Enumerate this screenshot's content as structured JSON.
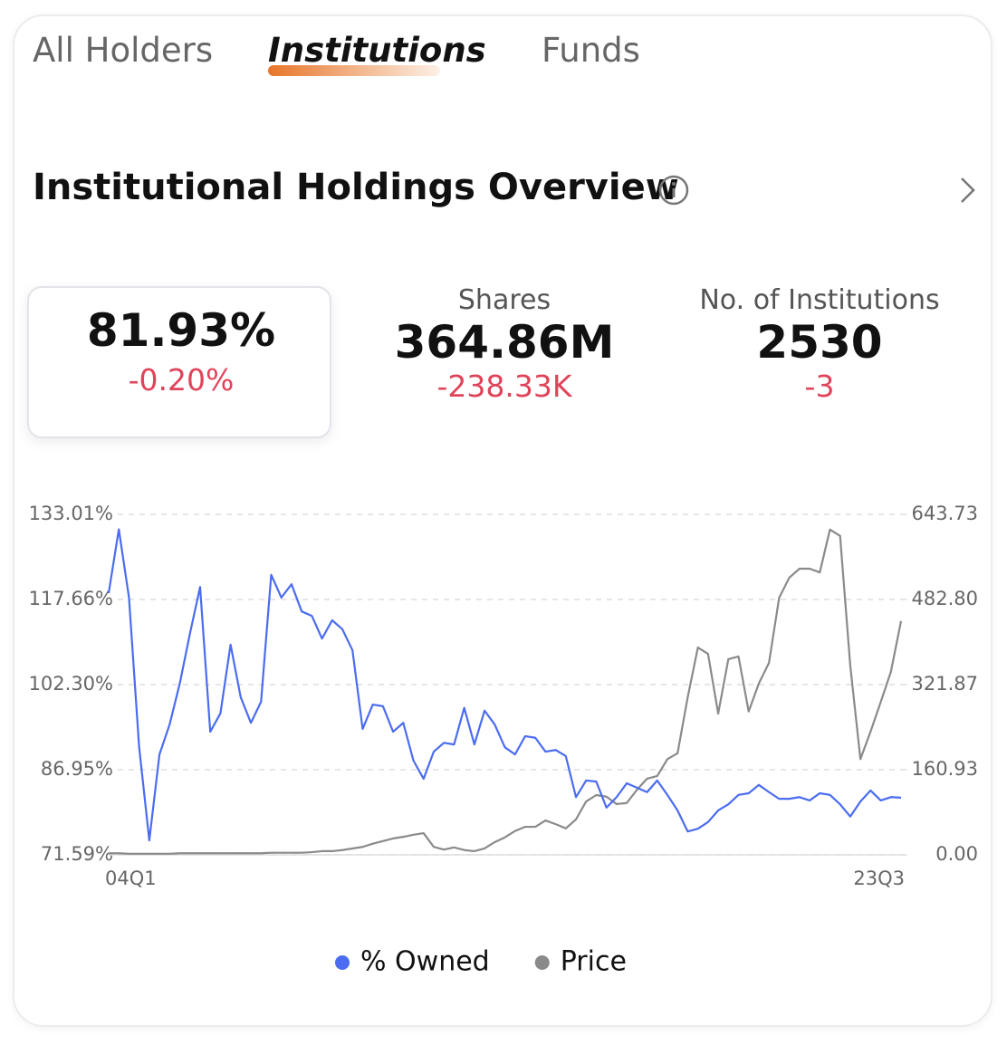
{
  "tabs": [
    "All Holders",
    "Institutions",
    "Funds"
  ],
  "header": {
    "title": "Institutional Holdings Overview"
  },
  "stats": [
    {
      "value": "81.93%",
      "change": "-0.20%"
    },
    {
      "label": "Shares",
      "value": "364.86M",
      "change": "-238.33K"
    },
    {
      "label": "No. of Institutions",
      "value": "2530",
      "change": "-3"
    }
  ],
  "chart_data": {
    "type": "line",
    "categories": [
      "04Q1",
      null,
      null,
      null,
      null,
      null,
      null,
      null,
      null,
      null,
      null,
      null,
      null,
      null,
      null,
      null,
      null,
      null,
      null,
      null,
      null,
      null,
      null,
      null,
      null,
      null,
      null,
      null,
      null,
      null,
      null,
      null,
      null,
      null,
      null,
      null,
      null,
      null,
      null,
      null,
      null,
      null,
      null,
      null,
      null,
      null,
      null,
      null,
      null,
      null,
      null,
      null,
      null,
      null,
      null,
      null,
      null,
      null,
      null,
      null,
      null,
      null,
      null,
      null,
      null,
      null,
      null,
      null,
      null,
      null,
      null,
      null,
      null,
      null,
      null,
      null,
      null,
      null,
      "23Q3"
    ],
    "series": [
      {
        "name": "% Owned",
        "color": "#4b6cf0",
        "values": [
          118.8,
          130.3,
          118.0,
          91.0,
          74.2,
          89.7,
          95.1,
          102.5,
          111.5,
          119.9,
          93.8,
          97.1,
          109.5,
          100.0,
          95.4,
          99.2,
          122.1,
          118.0,
          120.4,
          115.5,
          114.7,
          110.6,
          113.9,
          112.3,
          108.5,
          94.3,
          98.7,
          98.4,
          93.8,
          95.4,
          88.6,
          85.3,
          90.2,
          91.8,
          91.5,
          98.1,
          91.5,
          97.6,
          95.1,
          91.0,
          89.7,
          93.0,
          92.7,
          90.2,
          90.5,
          89.4,
          82.0,
          85.0,
          84.8,
          80.1,
          82.0,
          84.5,
          83.7,
          82.9,
          85.0,
          82.4,
          79.6,
          75.8,
          76.3,
          77.5,
          79.6,
          80.7,
          82.4,
          82.7,
          84.2,
          82.9,
          81.7,
          81.7,
          82.0,
          81.4,
          82.7,
          82.4,
          80.7,
          78.5,
          81.2,
          83.2,
          81.4,
          82.0,
          81.9
        ]
      },
      {
        "name": "Price",
        "color": "#8a8a8a",
        "axis": "y2",
        "values": [
          3,
          3,
          2,
          2,
          2,
          2,
          2,
          3,
          3,
          3,
          3,
          3,
          3,
          3,
          3,
          3,
          4,
          4,
          4,
          4,
          5,
          7,
          7,
          9,
          12,
          15,
          21,
          26,
          31,
          34,
          38,
          41,
          15,
          10,
          14,
          9,
          7,
          12,
          24,
          33,
          45,
          53,
          53,
          65,
          58,
          50,
          67,
          101,
          113,
          110,
          96,
          98,
          123,
          144,
          149,
          181,
          192,
          298,
          392,
          380,
          267,
          370,
          375,
          271,
          324,
          363,
          486,
          524,
          541,
          541,
          534,
          615,
          603,
          358,
          181,
          233,
          289,
          346,
          442
        ]
      }
    ],
    "ylim": [
      71.59,
      133.01
    ],
    "yticks": [
      {
        "value": 71.59,
        "label": "71.59%"
      },
      {
        "value": 86.95,
        "label": "86.95%"
      },
      {
        "value": 102.3,
        "label": "102.30%"
      },
      {
        "value": 117.66,
        "label": "117.66%"
      },
      {
        "value": 133.01,
        "label": "133.01%"
      }
    ],
    "y2lim": [
      0,
      643.73
    ],
    "y2ticks": [
      {
        "value": 0,
        "label": "0.00"
      },
      160.93,
      321.87,
      {
        "value": 482.8,
        "label": "482.80"
      },
      643.73
    ],
    "grid": true,
    "legend": "bottom"
  }
}
